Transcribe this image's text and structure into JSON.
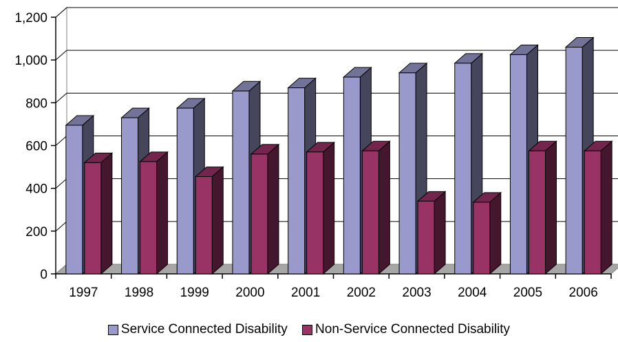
{
  "chart_data": {
    "type": "bar",
    "title": "",
    "xlabel": "",
    "ylabel": "",
    "categories": [
      "1997",
      "1998",
      "1999",
      "2000",
      "2001",
      "2002",
      "2003",
      "2004",
      "2005",
      "2006"
    ],
    "series": [
      {
        "name": "Service Connected Disability",
        "color": "#9999cc",
        "values": [
          695,
          730,
          775,
          855,
          870,
          920,
          940,
          985,
          1025,
          1060
        ]
      },
      {
        "name": "Non-Service Connected Disability",
        "color": "#993366",
        "values": [
          520,
          525,
          455,
          560,
          570,
          575,
          340,
          335,
          575,
          575
        ]
      }
    ],
    "yticks": [
      "0",
      "200",
      "400",
      "600",
      "800",
      "1,000",
      "1,200"
    ],
    "ylim": [
      0,
      1200
    ],
    "grid": true,
    "legend_position": "bottom"
  }
}
